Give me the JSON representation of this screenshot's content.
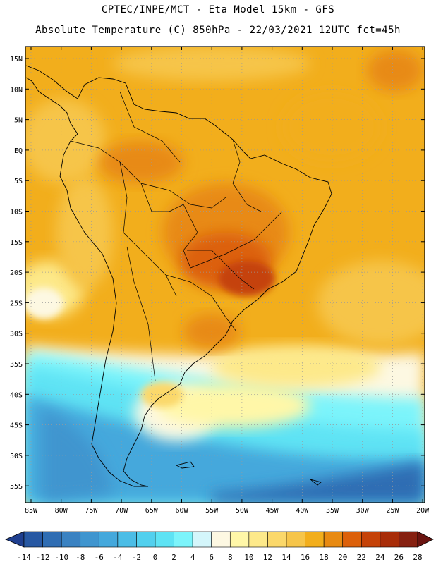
{
  "header": {
    "line1": "CPTEC/INPE/MCT  -   Eta Model 15km  -  GFS",
    "line2": "Absolute Temperature (C) 850hPa - 22/03/2021 12UTC fct=45h"
  },
  "map": {
    "lat_labels": [
      "15N",
      "10N",
      "5N",
      "EQ",
      "5S",
      "10S",
      "15S",
      "20S",
      "25S",
      "30S",
      "35S",
      "40S",
      "45S",
      "50S",
      "55S"
    ],
    "lon_labels": [
      "85W",
      "80W",
      "75W",
      "70W",
      "65W",
      "60W",
      "55W",
      "50W",
      "45W",
      "40W",
      "35W",
      "30W",
      "25W",
      "20W"
    ]
  },
  "colorbar": {
    "labels": [
      "-14",
      "-12",
      "-10",
      "-8",
      "-6",
      "-4",
      "-2",
      "0",
      "2",
      "4",
      "6",
      "8",
      "10",
      "12",
      "14",
      "16",
      "18",
      "20",
      "22",
      "24",
      "26",
      "28"
    ],
    "colors": [
      "#1f3f8f",
      "#2758a3",
      "#2f6db3",
      "#3a82c2",
      "#3f95cf",
      "#44a8dc",
      "#4bbde6",
      "#52d0ee",
      "#5ee3f4",
      "#7cf4fb",
      "#d4f6fb",
      "#fdf8e2",
      "#fff7a8",
      "#fde98a",
      "#fbd86a",
      "#f6c54a",
      "#f2ae1c",
      "#e88a12",
      "#dc600a",
      "#c54208",
      "#a82c08",
      "#862010",
      "#6a1410"
    ]
  }
}
